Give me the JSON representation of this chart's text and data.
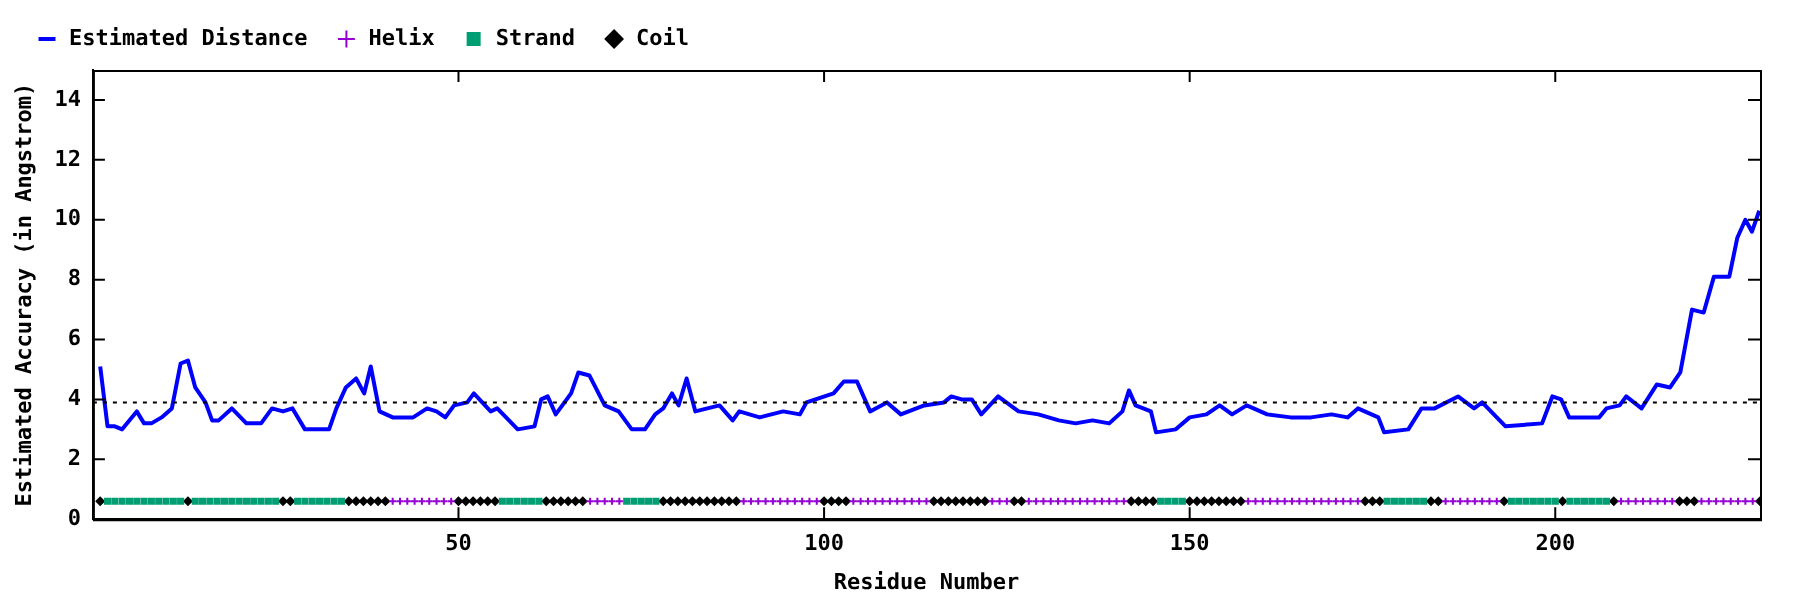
{
  "chart_data": {
    "type": "line",
    "xlabel": "Residue Number",
    "ylabel": "Estimated Accuracy (in Angstrom)",
    "xlim": [
      0,
      228
    ],
    "xticks": [
      50,
      100,
      150,
      200
    ],
    "ylim": [
      0,
      15
    ],
    "yticks": [
      0,
      2,
      4,
      6,
      8,
      10,
      12,
      14
    ],
    "legend": "top",
    "grid": false,
    "ref_lines": [
      {
        "axis": "y",
        "value": 3.9,
        "color": "#000000",
        "line_style": "dotted"
      }
    ],
    "series": [
      {
        "name": "Estimated Distance",
        "color": "#0000ff",
        "marker": "none",
        "x": [
          1,
          2,
          3,
          4,
          6,
          7,
          8,
          9.4,
          10.8,
          12,
          13,
          14,
          15.4,
          16.3,
          17.2,
          19,
          21,
          23,
          24.5,
          26,
          27.3,
          29,
          32.3,
          33.3,
          34.6,
          36,
          37.1,
          38,
          39.2,
          41,
          43.8,
          45.7,
          47,
          48.2,
          49.4,
          51.2,
          52.1,
          54.4,
          55.3,
          58.1,
          60.4,
          61.3,
          62.2,
          63.3,
          65.4,
          66.4,
          67.9,
          70,
          71.9,
          73.7,
          75.5,
          76.9,
          78,
          79.2,
          80.1,
          81.2,
          82.4,
          85.7,
          87.5,
          88.4,
          91.2,
          94.4,
          96.7,
          97.6,
          101.3,
          102.7,
          104.5,
          106.3,
          108.6,
          110.5,
          113.7,
          116.4,
          117.4,
          118.8,
          120.2,
          121.5,
          123.8,
          126.6,
          129.3,
          132.1,
          134.4,
          136.7,
          139,
          140.8,
          141.7,
          142.6,
          144.7,
          145.4,
          148.1,
          150,
          152.3,
          154.1,
          155.8,
          157.8,
          160.6,
          163.8,
          166.6,
          169.4,
          171.6,
          173,
          175.8,
          176.6,
          179.9,
          181.7,
          183.5,
          186.7,
          188.9,
          190,
          193.2,
          198.2,
          199.6,
          200.8,
          201.9,
          203.7,
          206,
          207,
          208.8,
          209.7,
          211.8,
          213.9,
          215.7,
          217.1,
          218.7,
          220.3,
          221.7,
          223.8,
          224.9,
          226,
          226.9,
          227.9
        ],
        "values": [
          5.1,
          3.1,
          3.1,
          3.0,
          3.6,
          3.2,
          3.2,
          3.4,
          3.7,
          5.2,
          5.3,
          4.4,
          3.9,
          3.3,
          3.3,
          3.7,
          3.2,
          3.2,
          3.7,
          3.6,
          3.7,
          3.0,
          3.0,
          3.7,
          4.4,
          4.7,
          4.2,
          5.1,
          3.6,
          3.4,
          3.4,
          3.7,
          3.6,
          3.4,
          3.8,
          3.9,
          4.2,
          3.6,
          3.7,
          3.0,
          3.1,
          4.0,
          4.1,
          3.5,
          4.2,
          4.9,
          4.8,
          3.8,
          3.6,
          3.0,
          3.0,
          3.5,
          3.7,
          4.2,
          3.8,
          4.7,
          3.6,
          3.8,
          3.3,
          3.6,
          3.4,
          3.6,
          3.5,
          3.9,
          4.2,
          4.6,
          4.6,
          3.6,
          3.9,
          3.5,
          3.8,
          3.9,
          4.1,
          4.0,
          4.0,
          3.5,
          4.1,
          3.6,
          3.5,
          3.3,
          3.2,
          3.3,
          3.2,
          3.6,
          4.3,
          3.8,
          3.6,
          2.9,
          3.0,
          3.4,
          3.5,
          3.8,
          3.5,
          3.8,
          3.5,
          3.4,
          3.4,
          3.5,
          3.4,
          3.7,
          3.4,
          2.9,
          3.0,
          3.7,
          3.7,
          4.1,
          3.7,
          3.9,
          3.1,
          3.2,
          4.1,
          4.0,
          3.4,
          3.4,
          3.4,
          3.7,
          3.8,
          4.1,
          3.7,
          4.5,
          4.4,
          4.9,
          7.0,
          6.9,
          8.1,
          8.1,
          9.4,
          10.0,
          9.6,
          10.3
        ]
      },
      {
        "name": "Helix",
        "type": "scatter",
        "color": "#9400d3",
        "marker": "cross",
        "x": [
          41,
          42,
          43,
          44,
          45,
          46,
          47,
          48,
          49,
          68,
          69,
          70,
          71,
          72,
          89,
          90,
          91,
          92,
          93,
          94,
          95,
          96,
          97,
          98,
          99,
          104,
          105,
          106,
          107,
          108,
          109,
          110,
          111,
          112,
          113,
          114,
          123,
          124,
          125,
          128,
          129,
          130,
          131,
          132,
          133,
          134,
          135,
          136,
          137,
          138,
          139,
          140,
          141,
          158,
          159,
          160,
          161,
          162,
          163,
          164,
          165,
          166,
          167,
          168,
          169,
          170,
          171,
          172,
          173,
          185,
          186,
          187,
          188,
          189,
          190,
          191,
          192,
          209,
          210,
          211,
          212,
          213,
          214,
          215,
          216,
          220,
          221,
          222,
          223,
          224,
          225,
          226,
          227
        ],
        "values": [
          0.6,
          0.6,
          0.6,
          0.6,
          0.6,
          0.6,
          0.6,
          0.6,
          0.6,
          0.6,
          0.6,
          0.6,
          0.6,
          0.6,
          0.6,
          0.6,
          0.6,
          0.6,
          0.6,
          0.6,
          0.6,
          0.6,
          0.6,
          0.6,
          0.6,
          0.6,
          0.6,
          0.6,
          0.6,
          0.6,
          0.6,
          0.6,
          0.6,
          0.6,
          0.6,
          0.6,
          0.6,
          0.6,
          0.6,
          0.6,
          0.6,
          0.6,
          0.6,
          0.6,
          0.6,
          0.6,
          0.6,
          0.6,
          0.6,
          0.6,
          0.6,
          0.6,
          0.6,
          0.6,
          0.6,
          0.6,
          0.6,
          0.6,
          0.6,
          0.6,
          0.6,
          0.6,
          0.6,
          0.6,
          0.6,
          0.6,
          0.6,
          0.6,
          0.6,
          0.6,
          0.6,
          0.6,
          0.6,
          0.6,
          0.6,
          0.6,
          0.6,
          0.6,
          0.6,
          0.6,
          0.6,
          0.6,
          0.6,
          0.6,
          0.6,
          0.6,
          0.6,
          0.6,
          0.6,
          0.6,
          0.6,
          0.6,
          0.6
        ]
      },
      {
        "name": "Strand",
        "type": "scatter",
        "color": "#009e73",
        "marker": "square",
        "x": [
          2,
          3,
          4,
          5,
          6,
          7,
          8,
          9,
          10,
          11,
          12,
          14,
          15,
          16,
          17,
          18,
          19,
          20,
          21,
          22,
          23,
          24,
          25,
          28,
          29,
          30,
          31,
          32,
          33,
          34,
          56,
          57,
          58,
          59,
          60,
          61,
          73,
          74,
          75,
          76,
          77,
          146,
          147,
          148,
          149,
          177,
          178,
          179,
          180,
          181,
          182,
          194,
          195,
          196,
          197,
          198,
          199,
          200,
          202,
          203,
          204,
          205,
          206,
          207
        ],
        "values": [
          0.6,
          0.6,
          0.6,
          0.6,
          0.6,
          0.6,
          0.6,
          0.6,
          0.6,
          0.6,
          0.6,
          0.6,
          0.6,
          0.6,
          0.6,
          0.6,
          0.6,
          0.6,
          0.6,
          0.6,
          0.6,
          0.6,
          0.6,
          0.6,
          0.6,
          0.6,
          0.6,
          0.6,
          0.6,
          0.6,
          0.6,
          0.6,
          0.6,
          0.6,
          0.6,
          0.6,
          0.6,
          0.6,
          0.6,
          0.6,
          0.6,
          0.6,
          0.6,
          0.6,
          0.6,
          0.6,
          0.6,
          0.6,
          0.6,
          0.6,
          0.6,
          0.6,
          0.6,
          0.6,
          0.6,
          0.6,
          0.6,
          0.6,
          0.6,
          0.6,
          0.6,
          0.6,
          0.6,
          0.6
        ]
      },
      {
        "name": "Coil",
        "type": "scatter",
        "color": "#000000",
        "marker": "diamond",
        "x": [
          1,
          13,
          26,
          27,
          35,
          36,
          37,
          38,
          39,
          40,
          50,
          51,
          52,
          53,
          54,
          55,
          62,
          63,
          64,
          65,
          66,
          67,
          78,
          79,
          80,
          81,
          82,
          83,
          84,
          85,
          86,
          87,
          88,
          100,
          101,
          102,
          103,
          115,
          116,
          117,
          118,
          119,
          120,
          121,
          122,
          126,
          127,
          142,
          143,
          144,
          145,
          150,
          151,
          152,
          153,
          154,
          155,
          156,
          157,
          174,
          175,
          176,
          183,
          184,
          193,
          201,
          208,
          217,
          218,
          219,
          228
        ],
        "values": [
          0.6,
          0.6,
          0.6,
          0.6,
          0.6,
          0.6,
          0.6,
          0.6,
          0.6,
          0.6,
          0.6,
          0.6,
          0.6,
          0.6,
          0.6,
          0.6,
          0.6,
          0.6,
          0.6,
          0.6,
          0.6,
          0.6,
          0.6,
          0.6,
          0.6,
          0.6,
          0.6,
          0.6,
          0.6,
          0.6,
          0.6,
          0.6,
          0.6,
          0.6,
          0.6,
          0.6,
          0.6,
          0.6,
          0.6,
          0.6,
          0.6,
          0.6,
          0.6,
          0.6,
          0.6,
          0.6,
          0.6,
          0.6,
          0.6,
          0.6,
          0.6,
          0.6,
          0.6,
          0.6,
          0.6,
          0.6,
          0.6,
          0.6,
          0.6,
          0.6,
          0.6,
          0.6,
          0.6,
          0.6,
          0.6,
          0.6,
          0.6,
          0.6,
          0.6,
          0.6,
          0.6
        ]
      }
    ]
  }
}
